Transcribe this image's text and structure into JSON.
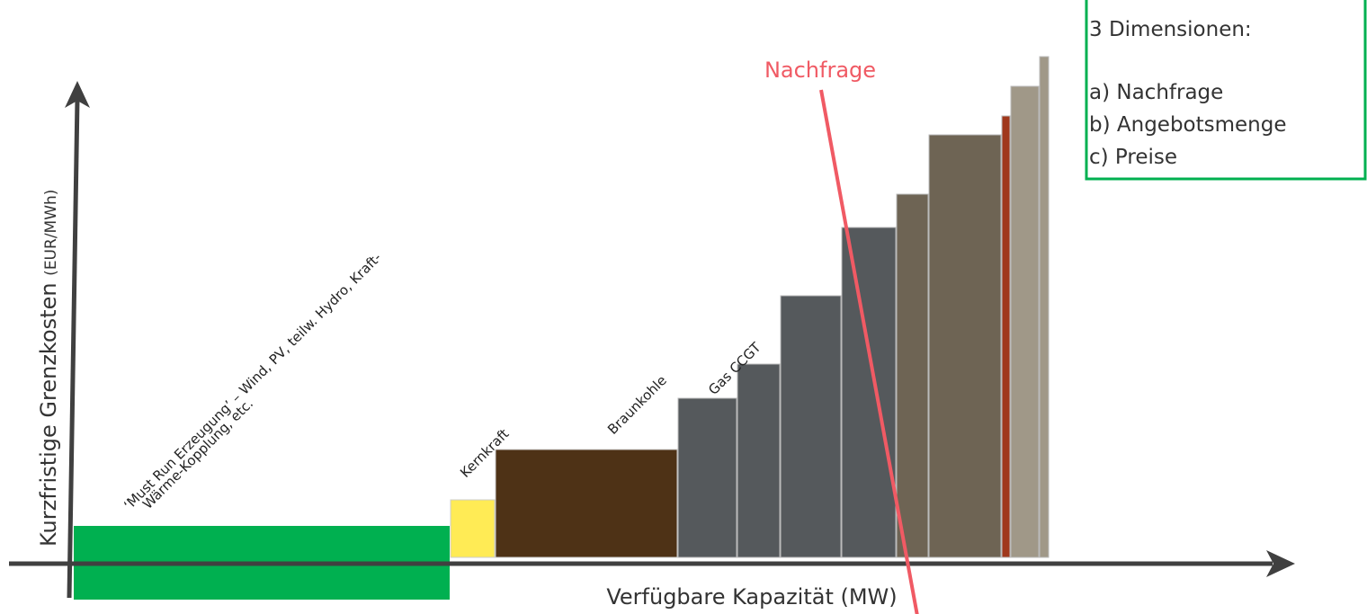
{
  "y_axis": {
    "label": "Kurzfristige Grenzkosten",
    "unit": "(EUR/MWh)"
  },
  "x_axis": {
    "label": "Verfügbare Kapazität (MW)"
  },
  "demand": {
    "label": "Nachfrage"
  },
  "blocks": [
    {
      "label_lines": [
        "‘Must Run Erzeugung’ – Wind, PV, teilw. Hydro, Kraft-",
        "Wärme-Kopplung, etc."
      ]
    },
    {
      "label": "Kernkraft"
    },
    {
      "label": "Braunkohle"
    },
    {
      "label": "Gas CCGT"
    }
  ],
  "info_box": {
    "title": "3 Dimensionen:",
    "items": [
      "a) Nachfrage",
      "b) Angebotsmenge",
      "c) Preise"
    ]
  }
}
